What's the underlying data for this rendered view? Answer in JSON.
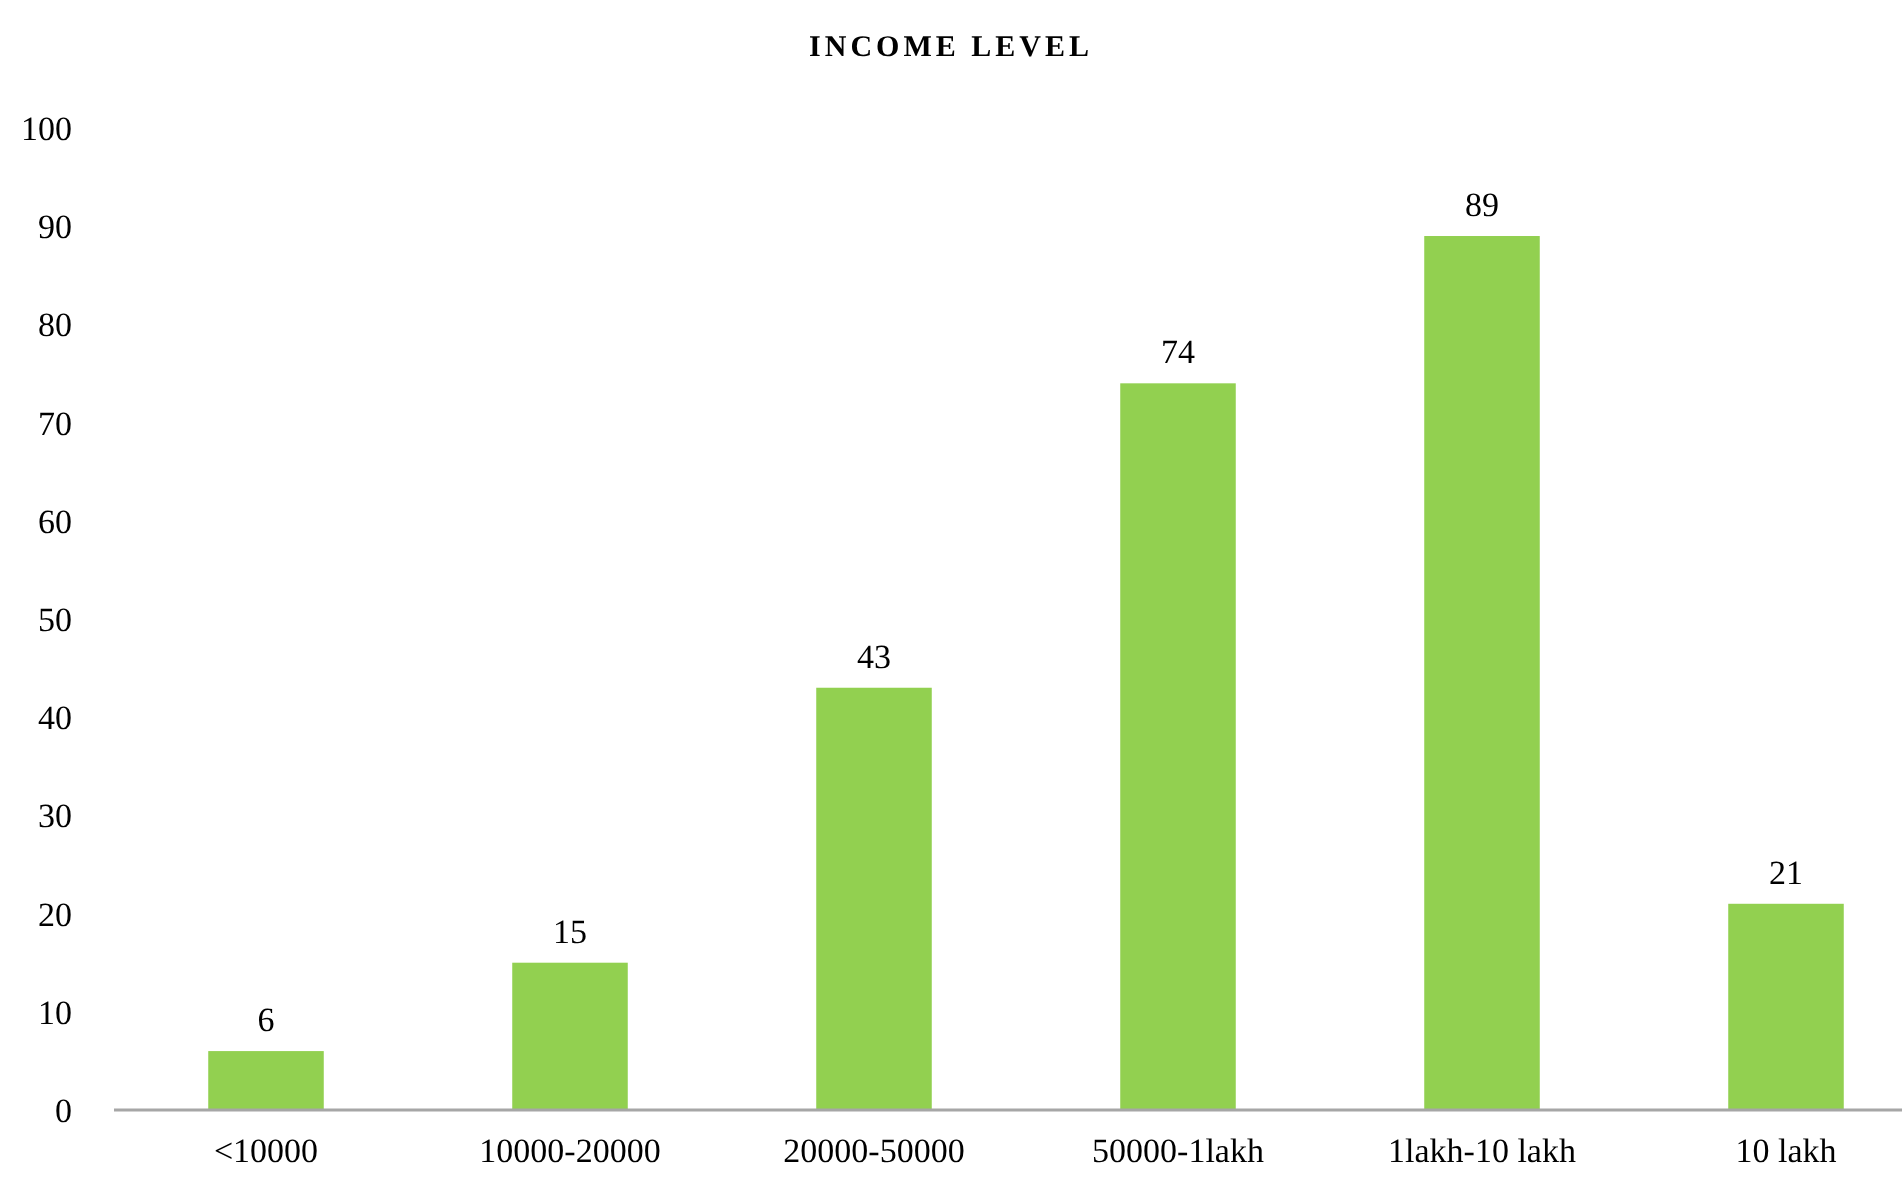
{
  "chart_data": {
    "type": "bar",
    "title": "INCOME LEVEL",
    "categories": [
      "<10000",
      "10000-20000",
      "20000-50000",
      "50000-1lakh",
      "1lakh-10 lakh",
      "10 lakh"
    ],
    "values": [
      6,
      15,
      43,
      74,
      89,
      21
    ],
    "color": "#92d050",
    "ylim": [
      0,
      100
    ],
    "yticks": [
      0,
      10,
      20,
      30,
      40,
      50,
      60,
      70,
      80,
      90,
      100
    ],
    "grid": false,
    "data_labels": true
  }
}
